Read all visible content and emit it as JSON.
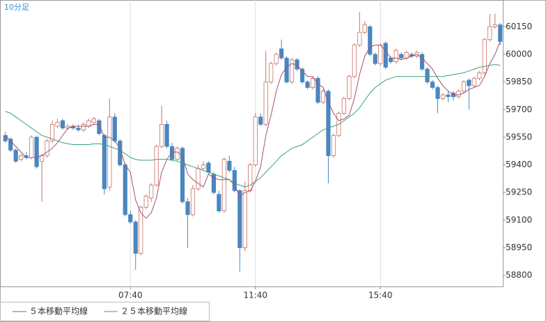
{
  "chart_data": {
    "type": "candlestick",
    "title": "10分足",
    "title_color": "#3a8fd0",
    "categories": [
      null,
      null,
      null,
      null,
      null,
      null,
      null,
      null,
      null,
      null,
      null,
      null,
      null,
      null,
      null,
      null,
      null,
      null,
      null,
      null,
      null,
      null,
      null,
      null,
      "07:40",
      null,
      null,
      null,
      null,
      null,
      null,
      null,
      null,
      null,
      null,
      null,
      null,
      null,
      null,
      null,
      null,
      null,
      null,
      null,
      null,
      null,
      null,
      null,
      "11:40",
      null,
      null,
      null,
      null,
      null,
      null,
      null,
      null,
      null,
      null,
      null,
      null,
      null,
      null,
      null,
      null,
      null,
      null,
      null,
      null,
      null,
      null,
      null,
      "15:40",
      null,
      null,
      null,
      null,
      null,
      null,
      null,
      null,
      null,
      null,
      null,
      null,
      null,
      null,
      null,
      null,
      null,
      null,
      null,
      null,
      null,
      null,
      null
    ],
    "open": [
      59560,
      59540,
      59480,
      59430,
      59450,
      59440,
      59550,
      59420,
      59450,
      59530,
      59610,
      59640,
      59600,
      59610,
      59600,
      59590,
      59610,
      59630,
      59640,
      59560,
      59280,
      59660,
      59530,
      59400,
      59130,
      59090,
      58920,
      59170,
      59220,
      59290,
      59500,
      59620,
      59500,
      59430,
      59490,
      59200,
      59130,
      59270,
      59380,
      59410,
      59350,
      59240,
      59150,
      59420,
      59370,
      59260,
      58950,
      59260,
      59400,
      59660,
      59620,
      59850,
      59950,
      60030,
      59980,
      59850,
      59970,
      59920,
      59850,
      59820,
      59870,
      59740,
      59800,
      59450,
      59560,
      59680,
      59760,
      59880,
      60050,
      60120,
      60150,
      60000,
      59950,
      60060,
      59980,
      59960,
      60000,
      59980,
      60000,
      59990,
      60000,
      59920,
      59850,
      59820,
      59760,
      59780,
      59790,
      59770,
      59800,
      59860,
      59830,
      59870,
      59900,
      60080,
      60150,
      60160
    ],
    "high": [
      59580,
      59550,
      59490,
      59460,
      59470,
      59560,
      59560,
      59460,
      59540,
      59640,
      59650,
      59650,
      59620,
      59620,
      59620,
      59630,
      59650,
      59660,
      59650,
      59570,
      59760,
      59680,
      59540,
      59410,
      59150,
      59100,
      59180,
      59240,
      59300,
      59510,
      59720,
      59640,
      59520,
      59500,
      59500,
      59220,
      59290,
      59400,
      59420,
      59420,
      59360,
      59260,
      59440,
      59450,
      59390,
      59270,
      59310,
      59410,
      59680,
      59680,
      60020,
      59960,
      60010,
      60080,
      59990,
      59980,
      59980,
      59930,
      59860,
      59880,
      59880,
      59810,
      59810,
      59570,
      59690,
      59770,
      59890,
      60060,
      60230,
      60180,
      60160,
      60010,
      60060,
      60070,
      59990,
      60030,
      60010,
      60020,
      60010,
      60020,
      60010,
      59930,
      59860,
      59830,
      59790,
      59800,
      59800,
      59810,
      59860,
      59870,
      59880,
      59910,
      60090,
      60220,
      60220,
      60170
    ],
    "low": [
      59520,
      59470,
      59410,
      59420,
      59430,
      59430,
      59380,
      59200,
      59440,
      59520,
      59600,
      59590,
      59590,
      59590,
      59580,
      59580,
      59600,
      59620,
      59560,
      59240,
      59260,
      59520,
      59390,
      59120,
      59080,
      58830,
      58910,
      59160,
      59200,
      59280,
      59490,
      59490,
      59420,
      59420,
      59190,
      58950,
      59120,
      59260,
      59370,
      59350,
      59240,
      59140,
      59140,
      59360,
      59250,
      58820,
      58930,
      59250,
      59390,
      59610,
      59610,
      59840,
      59940,
      59970,
      59840,
      59840,
      59910,
      59840,
      59810,
      59810,
      59730,
      59730,
      59300,
      59440,
      59550,
      59670,
      59750,
      59870,
      60040,
      60110,
      59990,
      59940,
      59940,
      59920,
      59950,
      59950,
      59970,
      59970,
      59980,
      59980,
      59910,
      59840,
      59810,
      59680,
      59750,
      59740,
      59750,
      59760,
      59790,
      59700,
      59820,
      59860,
      59890,
      60070,
      60140,
      60050
    ],
    "close": [
      59530,
      59480,
      59420,
      59450,
      59440,
      59550,
      59390,
      59450,
      59530,
      59620,
      59630,
      59600,
      59610,
      59600,
      59590,
      59620,
      59640,
      59650,
      59570,
      59270,
      59660,
      59530,
      59400,
      59130,
      59090,
      58920,
      59170,
      59230,
      59290,
      59500,
      59620,
      59500,
      59430,
      59490,
      59200,
      59130,
      59270,
      59380,
      59400,
      59360,
      59250,
      59150,
      59430,
      59370,
      59260,
      58950,
      59260,
      59400,
      59660,
      59620,
      59850,
      59950,
      60000,
      59980,
      59850,
      59970,
      59920,
      59850,
      59820,
      59870,
      59740,
      59800,
      59450,
      59560,
      59680,
      59760,
      59880,
      60050,
      60120,
      60160,
      60000,
      59950,
      60050,
      59930,
      59960,
      60020,
      59980,
      60010,
      59990,
      60010,
      59920,
      59850,
      59820,
      59760,
      59780,
      59770,
      59770,
      59800,
      59850,
      59830,
      59870,
      59900,
      60080,
      60150,
      60160,
      60070
    ],
    "up_color": "#c8705f",
    "down_color": "#4a86c0",
    "series": [
      {
        "name": "５本移動平均線",
        "color": "#a8506a",
        "values": [
          59560,
          59530,
          59500,
          59470,
          59440,
          59440,
          59440,
          59450,
          59470,
          59490,
          59520,
          59560,
          59600,
          59610,
          59610,
          59610,
          59610,
          59620,
          59620,
          59550,
          59550,
          59530,
          59490,
          59400,
          59360,
          59210,
          59140,
          59110,
          59140,
          59220,
          59360,
          59430,
          59470,
          59470,
          59450,
          59350,
          59320,
          59300,
          59280,
          59350,
          59330,
          59320,
          59320,
          59320,
          59290,
          59230,
          59250,
          59260,
          59310,
          59390,
          59560,
          59670,
          59800,
          59890,
          59930,
          59950,
          59940,
          59910,
          59880,
          59880,
          59840,
          59820,
          59740,
          59680,
          59640,
          59650,
          59670,
          59760,
          59890,
          59990,
          60040,
          60050,
          60050,
          60020,
          59980,
          59980,
          59970,
          59980,
          59990,
          60000,
          59980,
          59950,
          59920,
          59870,
          59830,
          59800,
          59780,
          59780,
          59790,
          59810,
          59820,
          59830,
          59880,
          59950,
          60000,
          60070
        ]
      },
      {
        "name": "２５本移動平均線",
        "color": "#3aa07a",
        "values": [
          59690,
          59680,
          59660,
          59640,
          59620,
          59600,
          59580,
          59560,
          59550,
          59540,
          59530,
          59520,
          59515,
          59510,
          59510,
          59510,
          59510,
          59515,
          59515,
          59510,
          59500,
          59490,
          59480,
          59460,
          59440,
          59430,
          59425,
          59425,
          59425,
          59430,
          59430,
          59430,
          59425,
          59420,
          59410,
          59400,
          59390,
          59380,
          59370,
          59360,
          59350,
          59340,
          59330,
          59320,
          59300,
          59290,
          59280,
          59290,
          59310,
          59330,
          59360,
          59390,
          59420,
          59450,
          59470,
          59490,
          59500,
          59510,
          59530,
          59550,
          59570,
          59590,
          59600,
          59610,
          59620,
          59640,
          59660,
          59680,
          59710,
          59750,
          59790,
          59820,
          59840,
          59860,
          59870,
          59880,
          59880,
          59880,
          59880,
          59880,
          59880,
          59880,
          59880,
          59880,
          59880,
          59885,
          59890,
          59895,
          59900,
          59910,
          59920,
          59930,
          59935,
          59940,
          59945,
          59940
        ]
      }
    ],
    "ylim": [
      58740,
      60295
    ],
    "yticks": [
      58800,
      58950,
      59100,
      59250,
      59400,
      59550,
      59700,
      59850,
      60000,
      60150
    ],
    "grid": true
  }
}
